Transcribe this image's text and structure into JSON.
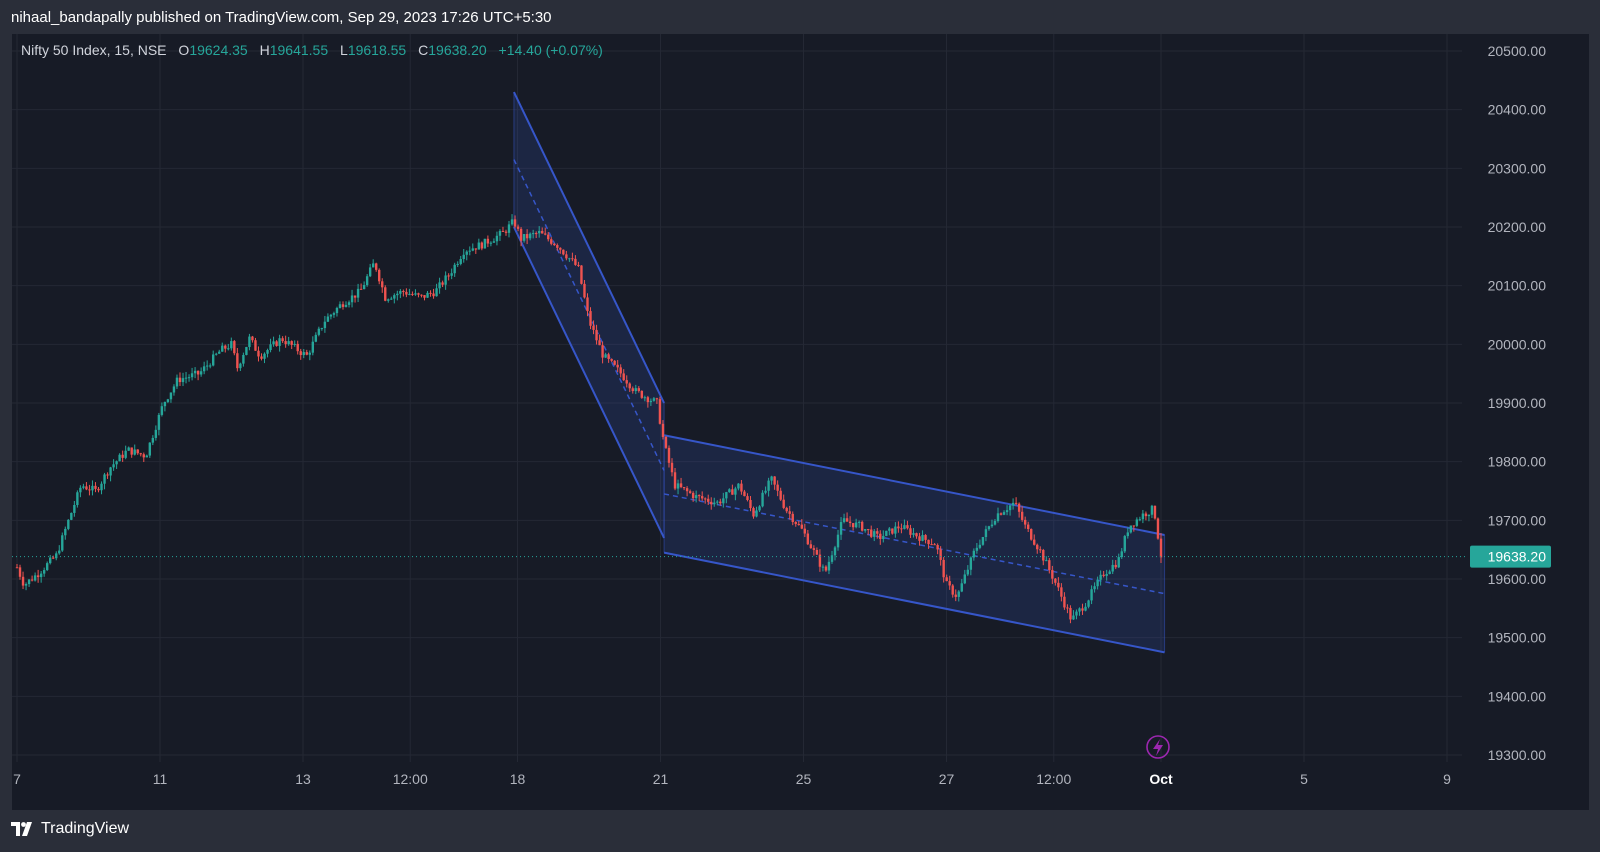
{
  "header": {
    "published_by": "nihaal_bandapally published on TradingView.com, Sep 29, 2023 17:26 UTC+5:30"
  },
  "legend": {
    "symbol": "Nifty 50 Index, 15, NSE",
    "o_label": "O",
    "o_value": "19624.35",
    "h_label": "H",
    "h_value": "19641.55",
    "l_label": "L",
    "l_value": "19618.55",
    "c_label": "C",
    "c_value": "19638.20",
    "change": "+14.40 (+0.07%)"
  },
  "brand": {
    "name": "TradingView",
    "logo_icon": "tradingview-logo-icon"
  },
  "colors": {
    "up": "#26a69a",
    "down": "#ef5350",
    "channel": "#3656c9",
    "background": "#171b26"
  },
  "chart_data": {
    "type": "candlestick",
    "symbol": "Nifty 50 Index",
    "interval": "15",
    "exchange": "NSE",
    "ylim": [
      19300,
      20500
    ],
    "y_ticks": [
      "20500.00",
      "20400.00",
      "20300.00",
      "20200.00",
      "20100.00",
      "20000.00",
      "19900.00",
      "19800.00",
      "19700.00",
      "19600.00",
      "19500.00",
      "19400.00",
      "19300.00"
    ],
    "x_ticks": [
      {
        "label": "7",
        "t": 0
      },
      {
        "label": "11",
        "t": 2
      },
      {
        "label": "13",
        "t": 4
      },
      {
        "label": "12:00",
        "t": 5.5
      },
      {
        "label": "18",
        "t": 7
      },
      {
        "label": "21",
        "t": 9
      },
      {
        "label": "25",
        "t": 11
      },
      {
        "label": "27",
        "t": 13
      },
      {
        "label": "12:00",
        "t": 14.5
      },
      {
        "label": "Oct",
        "t": 16
      },
      {
        "label": "5",
        "t": 18
      },
      {
        "label": "9",
        "t": 20
      }
    ],
    "last_price": "19638.20",
    "price_path": [
      [
        0.0,
        19620
      ],
      [
        0.1,
        19590
      ],
      [
        0.3,
        19610
      ],
      [
        0.55,
        19640
      ],
      [
        0.75,
        19710
      ],
      [
        0.9,
        19760
      ],
      [
        1.1,
        19750
      ],
      [
        1.3,
        19790
      ],
      [
        1.55,
        19820
      ],
      [
        1.8,
        19810
      ],
      [
        2.05,
        19900
      ],
      [
        2.25,
        19940
      ],
      [
        2.55,
        19950
      ],
      [
        2.85,
        19990
      ],
      [
        3.0,
        20000
      ],
      [
        3.08,
        19960
      ],
      [
        3.25,
        20010
      ],
      [
        3.4,
        19980
      ],
      [
        3.7,
        20010
      ],
      [
        4.05,
        19980
      ],
      [
        4.3,
        20040
      ],
      [
        4.55,
        20070
      ],
      [
        4.8,
        20090
      ],
      [
        5.0,
        20140
      ],
      [
        5.15,
        20080
      ],
      [
        5.4,
        20090
      ],
      [
        5.65,
        20080
      ],
      [
        5.85,
        20090
      ],
      [
        6.05,
        20120
      ],
      [
        6.25,
        20160
      ],
      [
        6.5,
        20170
      ],
      [
        6.8,
        20190
      ],
      [
        6.95,
        20210
      ],
      [
        7.05,
        20180
      ],
      [
        7.3,
        20190
      ],
      [
        7.55,
        20170
      ],
      [
        7.85,
        20130
      ],
      [
        8.0,
        20040
      ],
      [
        8.2,
        19980
      ],
      [
        8.45,
        19950
      ],
      [
        8.65,
        19920
      ],
      [
        8.95,
        19900
      ],
      [
        9.05,
        19830
      ],
      [
        9.2,
        19760
      ],
      [
        9.5,
        19740
      ],
      [
        9.8,
        19730
      ],
      [
        10.1,
        19760
      ],
      [
        10.3,
        19710
      ],
      [
        10.55,
        19770
      ],
      [
        10.75,
        19720
      ],
      [
        11.0,
        19680
      ],
      [
        11.3,
        19610
      ],
      [
        11.55,
        19700
      ],
      [
        11.8,
        19690
      ],
      [
        12.05,
        19670
      ],
      [
        12.35,
        19690
      ],
      [
        12.65,
        19670
      ],
      [
        12.85,
        19660
      ],
      [
        13.0,
        19590
      ],
      [
        13.15,
        19570
      ],
      [
        13.4,
        19650
      ],
      [
        13.7,
        19710
      ],
      [
        13.95,
        19730
      ],
      [
        14.1,
        19690
      ],
      [
        14.3,
        19650
      ],
      [
        14.5,
        19600
      ],
      [
        14.75,
        19530
      ],
      [
        14.95,
        19560
      ],
      [
        15.2,
        19610
      ],
      [
        15.4,
        19630
      ],
      [
        15.55,
        19690
      ],
      [
        15.75,
        19710
      ],
      [
        15.9,
        19720
      ],
      [
        16.0,
        19640
      ]
    ],
    "drawings": {
      "channel_1": {
        "upper": [
          [
            6.95,
            20430
          ],
          [
            9.05,
            19900
          ]
        ],
        "lower": [
          [
            6.95,
            20200
          ],
          [
            9.05,
            19670
          ]
        ],
        "mid": [
          [
            6.95,
            20315
          ],
          [
            9.05,
            19785
          ]
        ]
      },
      "channel_2": {
        "upper": [
          [
            9.05,
            19845
          ],
          [
            16.05,
            19675
          ]
        ],
        "lower": [
          [
            9.05,
            19645
          ],
          [
            16.05,
            19475
          ]
        ],
        "mid": [
          [
            9.05,
            19745
          ],
          [
            16.05,
            19575
          ]
        ]
      }
    }
  }
}
